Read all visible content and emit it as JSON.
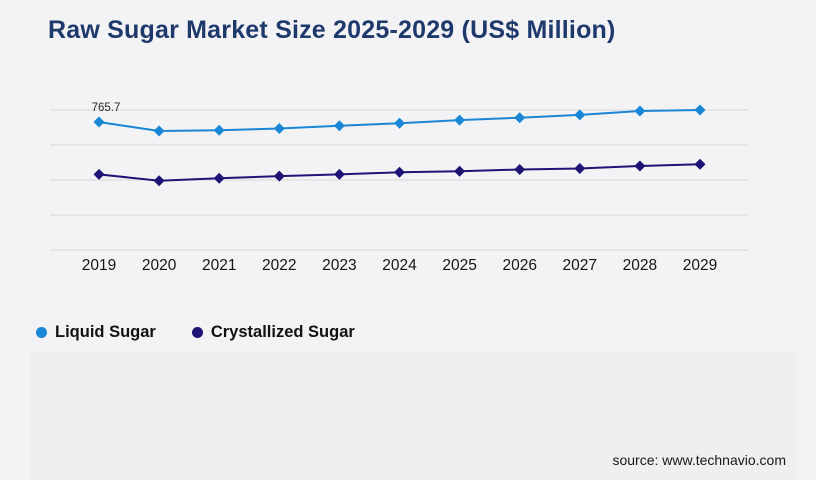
{
  "page": {
    "title": "Raw Sugar Market Size 2025-2029 (US$ Million)",
    "source_text": "source: www.technavio.com"
  },
  "colors": {
    "background": "#f3f3f5",
    "panel": "#efeff2",
    "title": "#1e3a6d",
    "gridline": "#d7d7da",
    "axis_label": "#161616",
    "data_label": "#2a2a2a",
    "source": "#181818",
    "liquid_sugar": "#1a87d6",
    "crystallized_sugar": "#1d1475"
  },
  "legend": {
    "items": [
      {
        "label": "Liquid Sugar",
        "color": "#1a87d6"
      },
      {
        "label": "Crystallized Sugar",
        "color": "#1d1475"
      }
    ]
  },
  "chart_data": {
    "type": "line",
    "title": "Raw Sugar Market Size 2025-2029 (US$ Million)",
    "categories": [
      "2019",
      "2020",
      "2021",
      "2022",
      "2023",
      "2024",
      "2025",
      "2026",
      "2027",
      "2028",
      "2029"
    ],
    "series": [
      {
        "name": "Liquid Sugar",
        "color": "#1a87d6",
        "values": [
          765.7,
          740,
          742,
          747,
          755,
          762,
          771,
          778,
          786,
          797,
          800
        ]
      },
      {
        "name": "Crystallized Sugar",
        "color": "#1d1475",
        "values": [
          616,
          598,
          605,
          611,
          616,
          622,
          625,
          630,
          633,
          640,
          645
        ]
      }
    ],
    "data_labels": [
      {
        "series": "Liquid Sugar",
        "category": "2019",
        "text": "765.7"
      }
    ],
    "xlabel": "",
    "ylabel": "",
    "ylim": [
      400,
      800
    ],
    "y_axis_labels_visible": false,
    "grid": "horizontal",
    "gridline_count": 5,
    "marker": "diamond",
    "legend_position": "bottom-left"
  }
}
